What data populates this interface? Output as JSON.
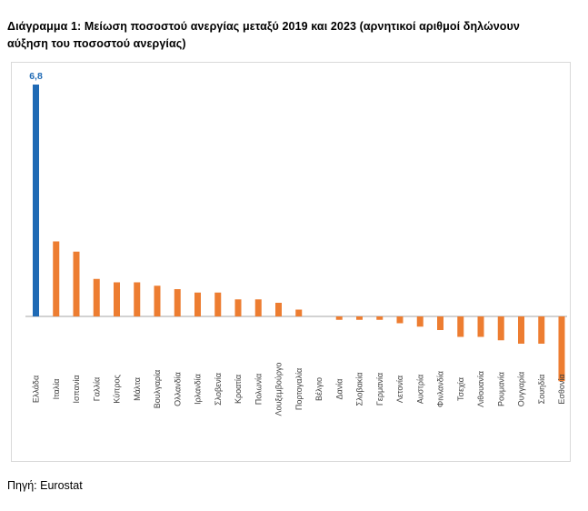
{
  "title": "Διάγραμμα 1: Μείωση ποσοστού ανεργίας μεταξύ 2019 και 2023 (αρνητικοί αριθμοί δηλώνουν αύξηση του ποσοστού ανεργίας)",
  "source": "Πηγή: Eurostat",
  "colors": {
    "highlight": "#1f6ab5",
    "bars": "#ed7d31",
    "axis": "#a6a6a6"
  },
  "chart_data": {
    "type": "bar",
    "title": "Διάγραμμα 1: Μείωση ποσοστού ανεργίας μεταξύ 2019 και 2023 (αρνητικοί αριθμοί δηλώνουν αύξηση του ποσοστού ανεργίας)",
    "xlabel": "",
    "ylabel": "",
    "categories": [
      "Ελλάδα",
      "Ιταλία",
      "Ισπανία",
      "Γαλλία",
      "Κύπρος",
      "Μάλτα",
      "Βουλγαρία",
      "Ολλανδία",
      "Ιρλανδία",
      "Σλοβενία",
      "Κροατία",
      "Πολωνία",
      "Λουξεμβούργο",
      "Πορτογαλία",
      "Βέλγιο",
      "Δανία",
      "Σλοβακία",
      "Γερμανία",
      "Λετονία",
      "Αυστρία",
      "Φινλανδία",
      "Τσεχία",
      "Λιθουανία",
      "Ρουμανία",
      "Ουγγαρία",
      "Σουηδία",
      "Εσθονία"
    ],
    "values": [
      6.8,
      2.2,
      1.9,
      1.1,
      1.0,
      1.0,
      0.9,
      0.8,
      0.7,
      0.7,
      0.5,
      0.5,
      0.4,
      0.2,
      0.0,
      -0.1,
      -0.1,
      -0.1,
      -0.2,
      -0.3,
      -0.4,
      -0.6,
      -0.6,
      -0.7,
      -0.8,
      -0.8,
      -1.9
    ],
    "data_labels": [
      {
        "category": "Ελλάδα",
        "text": "6,8"
      }
    ],
    "ylim": [
      -2.5,
      7
    ],
    "grid": false,
    "legend": "none"
  }
}
